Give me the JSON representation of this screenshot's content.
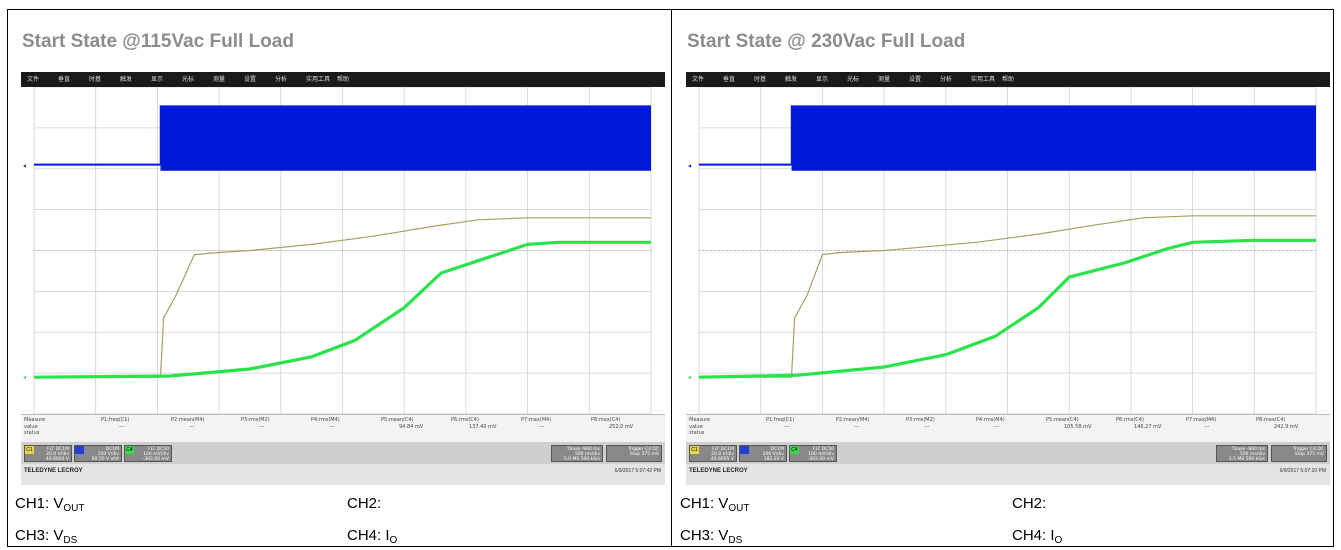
{
  "panels": [
    {
      "title": "Start State @115Vac Full Load",
      "menu": [
        "文件",
        "垂直",
        "时基",
        "触发",
        "显示",
        "光标",
        "测量",
        "设置",
        "分析",
        "实用工具",
        "帮助"
      ],
      "measure": {
        "header": "Measure",
        "row_value": "value",
        "row_status": "status",
        "params": [
          "P1:freq(C1)",
          "P2:mean(M4)",
          "P3:rms(M2)",
          "P4:rms(M4)",
          "P5:mean(C4)",
          "P6:rms(C4)",
          "P7:max(M4)",
          "P8:max(C4)"
        ],
        "values": [
          "---",
          "---",
          "---",
          "---",
          "94.84 mV",
          "137.40 mV",
          "---",
          "252.0 mV"
        ]
      },
      "channels": [
        {
          "tag": "C1",
          "text": "FLT DC1M\n20.0 V/div\n40.6005 V"
        },
        {
          "tag": "",
          "text": "DC1M\n100 V/div\n80.50 V ofst"
        },
        {
          "tag": "C4",
          "text": "FLT DC50\n100 mV/div\n-302.00 mV"
        }
      ],
      "timebase": {
        "text": "Tbase -960 ms\n500 ms/div\n5.0 MS 500 kS/s",
        "trigger": "Trigger C4 DC\nStop 375 mV"
      },
      "brand": "TELEDYNE LECROY",
      "timestamp": "6/9/2017 5:07:42 PM",
      "legend": {
        "ch1": "CH1: V",
        "ch1_sub": "OUT",
        "ch2": "CH2:",
        "ch3": "CH3: V",
        "ch3_sub": "DS",
        "ch4": "CH4: I",
        "ch4_sub": "O"
      }
    },
    {
      "title": "Start State @ 230Vac Full Load",
      "menu": [
        "文件",
        "垂直",
        "时基",
        "触发",
        "显示",
        "光标",
        "测量",
        "设置",
        "分析",
        "实用工具",
        "帮助"
      ],
      "measure": {
        "header": "Measure",
        "row_value": "value",
        "row_status": "status",
        "params": [
          "P1:freq(C1)",
          "P2:mean(M4)",
          "P3:rms(M2)",
          "P4:rms(M4)",
          "P5:mean(C4)",
          "P6:rms(C4)",
          "P7:max(M4)",
          "P8:max(C4)"
        ],
        "values": [
          "---",
          "---",
          "---",
          "---",
          "105.58 mV",
          "146.27 mV",
          "---",
          "242.9 mV"
        ]
      },
      "channels": [
        {
          "tag": "C1",
          "text": "FLT DC1M\n20.0 V/div\n40.6005 V"
        },
        {
          "tag": "",
          "text": "DC1M\n200 V/div\n182.20 V"
        },
        {
          "tag": "C4",
          "text": "FLT DC50\n100 mV/div\n-302.00 mV"
        }
      ],
      "timebase": {
        "text": "Tbase -960 ms\n500 ms/div\n2.5 MS 500 kS/s",
        "trigger": "Trigger C4 DC\nStop 375 mV"
      },
      "brand": "TELEDYNE LECROY",
      "timestamp": "6/9/2017 5:07:10 PM",
      "legend": {
        "ch1": "CH1: V",
        "ch1_sub": "OUT",
        "ch2": "CH2:",
        "ch3": "CH3: V",
        "ch3_sub": "DS",
        "ch4": "CH4: I",
        "ch4_sub": "O"
      }
    }
  ],
  "chart_data": [
    {
      "type": "line",
      "title": "Start State @115Vac Full Load",
      "xlim": [
        0,
        10
      ],
      "ylim": [
        0,
        8
      ],
      "grid": true,
      "colors": {
        "vds": "#0019d9",
        "vout": "#a6a060",
        "io": "#29e34a"
      },
      "series": [
        {
          "name": "V",
          "channel": "CH3",
          "kind": "band",
          "x": [
            0,
            2.05,
            2.05,
            10
          ],
          "low": [
            6.1,
            6.1,
            5.95,
            5.95
          ],
          "high": [
            6.1,
            6.1,
            7.55,
            7.55
          ]
        },
        {
          "name": "V",
          "channel": "CH1",
          "kind": "line",
          "x": [
            0,
            2.05,
            2.1,
            2.3,
            2.6,
            3.0,
            3.5,
            4.5,
            5.5,
            6.5,
            7.2,
            8,
            9,
            10
          ],
          "y": [
            0.9,
            0.9,
            2.35,
            2.9,
            3.9,
            3.95,
            4.0,
            4.15,
            4.35,
            4.6,
            4.75,
            4.8,
            4.8,
            4.8
          ]
        },
        {
          "name": "I",
          "channel": "CH4",
          "kind": "line",
          "x": [
            0,
            2.2,
            3.5,
            4.5,
            5.2,
            6.0,
            6.6,
            7.2,
            8.0,
            8.5,
            9.0,
            10
          ],
          "y": [
            0.9,
            0.93,
            1.1,
            1.4,
            1.8,
            2.6,
            3.45,
            3.75,
            4.15,
            4.2,
            4.2,
            4.2
          ]
        }
      ]
    },
    {
      "type": "line",
      "title": "Start State @ 230Vac Full Load",
      "xlim": [
        0,
        10
      ],
      "ylim": [
        0,
        8
      ],
      "grid": true,
      "colors": {
        "vds": "#0019d9",
        "vout": "#a6a060",
        "io": "#29e34a"
      },
      "series": [
        {
          "name": "V",
          "channel": "CH3",
          "kind": "band",
          "x": [
            0,
            1.5,
            1.5,
            10
          ],
          "low": [
            6.1,
            6.1,
            5.95,
            5.95
          ],
          "high": [
            6.1,
            6.1,
            7.55,
            7.55
          ]
        },
        {
          "name": "V",
          "channel": "CH1",
          "kind": "line",
          "x": [
            0,
            1.5,
            1.55,
            1.75,
            2.0,
            2.3,
            3.0,
            4.5,
            5.5,
            6.4,
            7.2,
            8,
            9,
            10
          ],
          "y": [
            0.9,
            0.9,
            2.35,
            2.9,
            3.9,
            3.95,
            4.0,
            4.2,
            4.4,
            4.62,
            4.8,
            4.85,
            4.85,
            4.85
          ]
        },
        {
          "name": "I",
          "channel": "CH4",
          "kind": "line",
          "x": [
            0,
            1.6,
            3.0,
            4.0,
            4.8,
            5.5,
            6.0,
            6.9,
            7.6,
            8.0,
            9.0,
            10
          ],
          "y": [
            0.9,
            0.95,
            1.15,
            1.45,
            1.9,
            2.6,
            3.35,
            3.7,
            4.05,
            4.2,
            4.25,
            4.25
          ]
        }
      ]
    }
  ]
}
